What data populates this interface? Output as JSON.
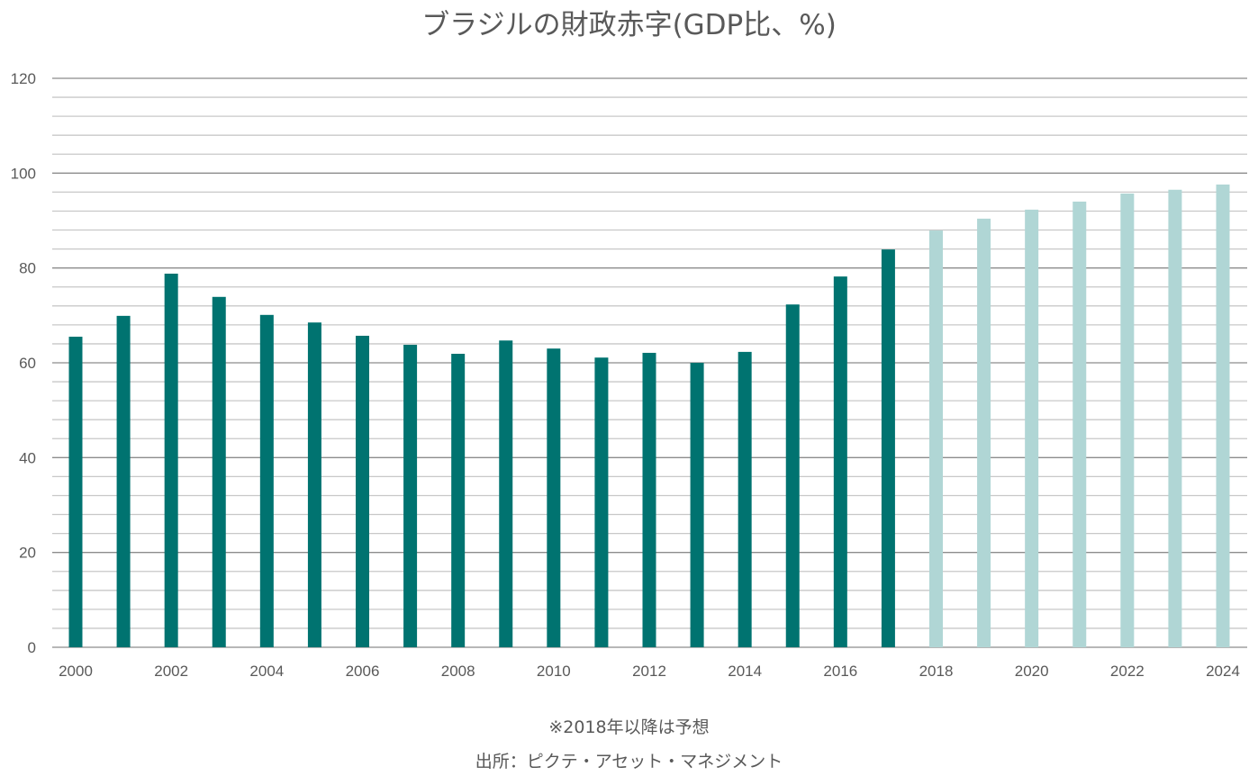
{
  "chart_data": {
    "type": "bar",
    "title": "ブラジルの財政赤字(GDP比、%)",
    "xlabel": "",
    "ylabel": "",
    "ylim": [
      0,
      120
    ],
    "yticks": [
      0,
      20,
      40,
      60,
      80,
      100,
      120
    ],
    "minor_grid_step": 4,
    "grid": true,
    "categories": [
      2000,
      2001,
      2002,
      2003,
      2004,
      2005,
      2006,
      2007,
      2008,
      2009,
      2010,
      2011,
      2012,
      2013,
      2014,
      2015,
      2016,
      2017,
      2018,
      2019,
      2020,
      2021,
      2022,
      2023,
      2024
    ],
    "xtick_labels": [
      "2000",
      "2002",
      "2004",
      "2006",
      "2008",
      "2010",
      "2012",
      "2014",
      "2016",
      "2018",
      "2020",
      "2022",
      "2024"
    ],
    "values": [
      65.5,
      69.9,
      78.8,
      73.9,
      70.1,
      68.5,
      65.7,
      63.8,
      61.9,
      64.7,
      63.0,
      61.1,
      62.1,
      60.0,
      62.3,
      72.3,
      78.2,
      83.9,
      87.9,
      90.4,
      92.3,
      94.0,
      95.7,
      96.5,
      97.6
    ],
    "forecast_from": 2018,
    "colors": {
      "actual": "#007370",
      "forecast": "#b0d6d5",
      "major_grid": "#8c8c8c",
      "minor_grid": "#c8c8c8"
    },
    "note": "※2018年以降は予想",
    "source": "出所：ピクテ・アセット・マネジメント"
  }
}
